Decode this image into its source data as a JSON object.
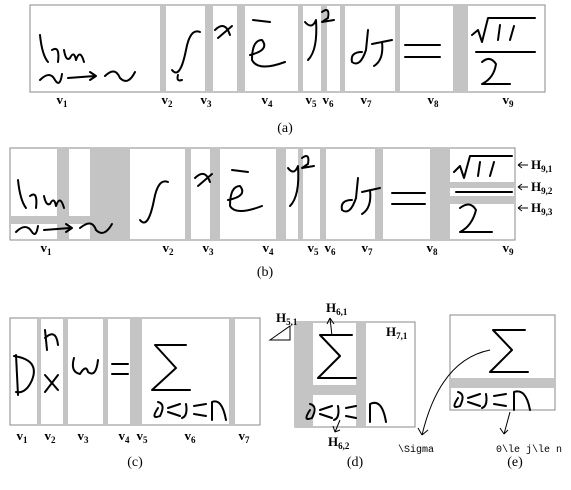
{
  "panels": [
    {
      "caption": "(a)",
      "labels": [
        {
          "base": "v",
          "sub": "1"
        },
        {
          "base": "v",
          "sub": "2"
        },
        {
          "base": "v",
          "sub": "3"
        },
        {
          "base": "v",
          "sub": "4"
        },
        {
          "base": "v",
          "sub": "5"
        },
        {
          "base": "v",
          "sub": "6"
        },
        {
          "base": "v",
          "sub": "7"
        },
        {
          "base": "v",
          "sub": "8"
        },
        {
          "base": "v",
          "sub": "9"
        }
      ]
    },
    {
      "caption": "(b)",
      "labels": [
        {
          "base": "v",
          "sub": "1"
        },
        {
          "base": "v",
          "sub": "2"
        },
        {
          "base": "v",
          "sub": "3"
        },
        {
          "base": "v",
          "sub": "4"
        },
        {
          "base": "v",
          "sub": "5"
        },
        {
          "base": "v",
          "sub": "6"
        },
        {
          "base": "v",
          "sub": "7"
        },
        {
          "base": "v",
          "sub": "8"
        },
        {
          "base": "v",
          "sub": "9"
        }
      ],
      "regions": [
        {
          "base": "H",
          "sub": "9,1"
        },
        {
          "base": "H",
          "sub": "9,2"
        },
        {
          "base": "H",
          "sub": "9,3"
        }
      ]
    },
    {
      "caption": "(c)",
      "labels": [
        {
          "base": "v",
          "sub": "1"
        },
        {
          "base": "v",
          "sub": "2"
        },
        {
          "base": "v",
          "sub": "3"
        },
        {
          "base": "v",
          "sub": "4"
        },
        {
          "base": "v",
          "sub": "5"
        },
        {
          "base": "v",
          "sub": "6"
        },
        {
          "base": "v",
          "sub": "7"
        }
      ]
    },
    {
      "caption": "(d)",
      "regions": [
        {
          "base": "H",
          "sub": "5,1"
        },
        {
          "base": "H",
          "sub": "6,1"
        },
        {
          "base": "H",
          "sub": "7,1"
        },
        {
          "base": "H",
          "sub": "6,2"
        }
      ]
    },
    {
      "caption": "(e)",
      "latex": [
        "\\Sigma",
        "0\\le j\\le n"
      ]
    }
  ]
}
